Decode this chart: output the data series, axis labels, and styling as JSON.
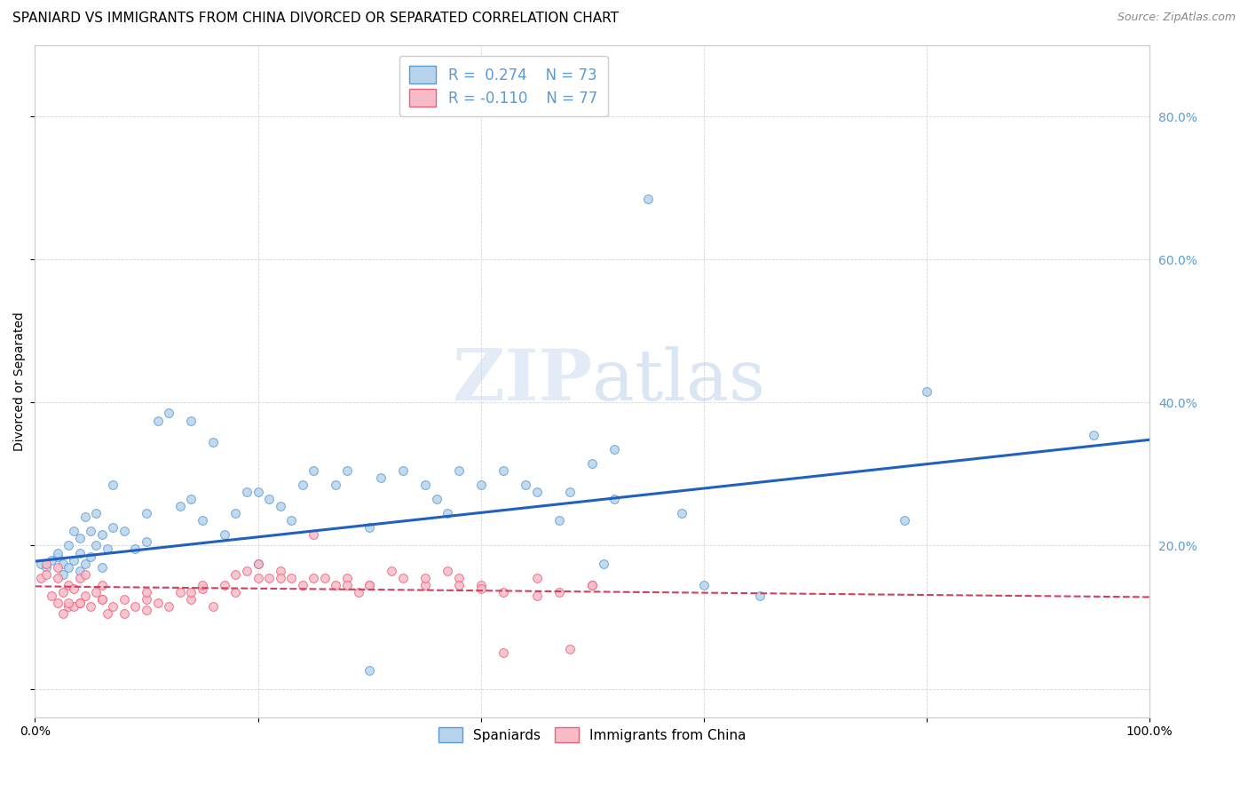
{
  "title": "SPANIARD VS IMMIGRANTS FROM CHINA DIVORCED OR SEPARATED CORRELATION CHART",
  "source": "Source: ZipAtlas.com",
  "ylabel": "Divorced or Separated",
  "yticks": [
    0.0,
    0.2,
    0.4,
    0.6,
    0.8
  ],
  "ytick_labels": [
    "",
    "20.0%",
    "40.0%",
    "60.0%",
    "80.0%"
  ],
  "xlim": [
    0.0,
    1.0
  ],
  "ylim": [
    -0.04,
    0.9
  ],
  "watermark_zip": "ZIP",
  "watermark_atlas": "atlas",
  "legend_line1": "R =  0.274    N = 73",
  "legend_line2": "R = -0.110    N = 77",
  "legend_labels_bottom": [
    "Spaniards",
    "Immigrants from China"
  ],
  "blue_color": "#5b9bd5",
  "pink_color": "#e8627a",
  "scatter_blue_face": "#b8d4ec",
  "scatter_blue_edge": "#5b9bd5",
  "scatter_pink_face": "#f7bcc8",
  "scatter_pink_edge": "#e8627a",
  "trendline_blue": "#2060c0",
  "trendline_pink": "#d04060",
  "blue_scatter_x": [
    0.005,
    0.01,
    0.015,
    0.02,
    0.02,
    0.025,
    0.025,
    0.03,
    0.03,
    0.035,
    0.035,
    0.04,
    0.04,
    0.04,
    0.045,
    0.045,
    0.05,
    0.05,
    0.055,
    0.055,
    0.06,
    0.06,
    0.065,
    0.07,
    0.07,
    0.08,
    0.09,
    0.1,
    0.1,
    0.11,
    0.12,
    0.13,
    0.14,
    0.14,
    0.15,
    0.16,
    0.17,
    0.18,
    0.19,
    0.2,
    0.21,
    0.22,
    0.23,
    0.24,
    0.25,
    0.27,
    0.28,
    0.3,
    0.31,
    0.33,
    0.35,
    0.36,
    0.37,
    0.38,
    0.4,
    0.42,
    0.44,
    0.45,
    0.47,
    0.48,
    0.5,
    0.51,
    0.52,
    0.55,
    0.58,
    0.6,
    0.65,
    0.78,
    0.8,
    0.95,
    0.52,
    0.3,
    0.2
  ],
  "blue_scatter_y": [
    0.175,
    0.17,
    0.18,
    0.185,
    0.19,
    0.16,
    0.175,
    0.17,
    0.2,
    0.18,
    0.22,
    0.165,
    0.19,
    0.21,
    0.175,
    0.24,
    0.185,
    0.22,
    0.2,
    0.245,
    0.17,
    0.215,
    0.195,
    0.225,
    0.285,
    0.22,
    0.195,
    0.205,
    0.245,
    0.375,
    0.385,
    0.255,
    0.265,
    0.375,
    0.235,
    0.345,
    0.215,
    0.245,
    0.275,
    0.275,
    0.265,
    0.255,
    0.235,
    0.285,
    0.305,
    0.285,
    0.305,
    0.225,
    0.295,
    0.305,
    0.285,
    0.265,
    0.245,
    0.305,
    0.285,
    0.305,
    0.285,
    0.275,
    0.235,
    0.275,
    0.315,
    0.175,
    0.265,
    0.685,
    0.245,
    0.145,
    0.13,
    0.235,
    0.415,
    0.355,
    0.335,
    0.025,
    0.175
  ],
  "pink_scatter_x": [
    0.005,
    0.01,
    0.01,
    0.015,
    0.02,
    0.02,
    0.025,
    0.025,
    0.03,
    0.03,
    0.035,
    0.035,
    0.04,
    0.04,
    0.045,
    0.045,
    0.05,
    0.055,
    0.06,
    0.06,
    0.065,
    0.07,
    0.08,
    0.09,
    0.1,
    0.1,
    0.11,
    0.12,
    0.13,
    0.14,
    0.15,
    0.16,
    0.17,
    0.18,
    0.19,
    0.2,
    0.21,
    0.22,
    0.23,
    0.24,
    0.25,
    0.26,
    0.27,
    0.28,
    0.29,
    0.3,
    0.32,
    0.33,
    0.35,
    0.37,
    0.38,
    0.4,
    0.42,
    0.45,
    0.47,
    0.5,
    0.38,
    0.28,
    0.22,
    0.18,
    0.14,
    0.1,
    0.08,
    0.06,
    0.04,
    0.03,
    0.02,
    0.15,
    0.2,
    0.25,
    0.3,
    0.35,
    0.4,
    0.45,
    0.48,
    0.5,
    0.42
  ],
  "pink_scatter_y": [
    0.155,
    0.16,
    0.175,
    0.13,
    0.12,
    0.155,
    0.105,
    0.135,
    0.115,
    0.145,
    0.115,
    0.14,
    0.12,
    0.155,
    0.13,
    0.16,
    0.115,
    0.135,
    0.125,
    0.145,
    0.105,
    0.115,
    0.125,
    0.115,
    0.11,
    0.125,
    0.12,
    0.115,
    0.135,
    0.125,
    0.14,
    0.115,
    0.145,
    0.135,
    0.165,
    0.175,
    0.155,
    0.165,
    0.155,
    0.145,
    0.215,
    0.155,
    0.145,
    0.155,
    0.135,
    0.145,
    0.165,
    0.155,
    0.145,
    0.165,
    0.155,
    0.145,
    0.135,
    0.155,
    0.135,
    0.145,
    0.145,
    0.145,
    0.155,
    0.16,
    0.135,
    0.135,
    0.105,
    0.125,
    0.12,
    0.12,
    0.17,
    0.145,
    0.155,
    0.155,
    0.145,
    0.155,
    0.14,
    0.13,
    0.055,
    0.145,
    0.05
  ],
  "blue_trend_y_start": 0.178,
  "blue_trend_y_end": 0.348,
  "pink_trend_y_start": 0.143,
  "pink_trend_y_end": 0.128,
  "background_color": "#ffffff",
  "grid_color": "#d0d0d0",
  "title_fontsize": 11,
  "axis_label_fontsize": 10,
  "tick_fontsize": 10,
  "source_fontsize": 9
}
